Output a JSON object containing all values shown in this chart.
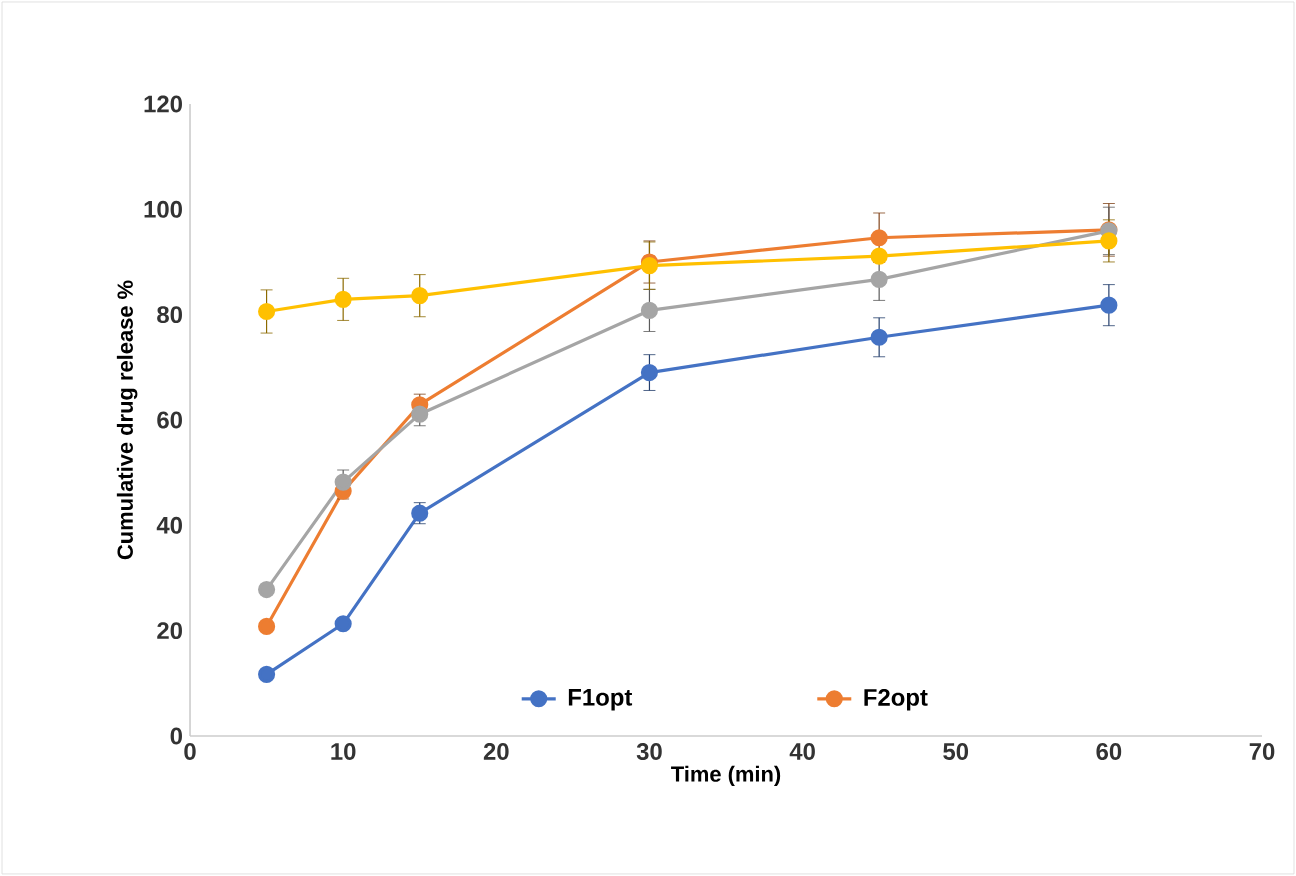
{
  "chart_data": {
    "type": "line",
    "xlabel": "Time (min)",
    "ylabel": "Cumulative drug release %",
    "xlim": [
      0,
      70
    ],
    "xticks": [
      0,
      10,
      20,
      30,
      40,
      50,
      60,
      70
    ],
    "ylim": [
      0,
      120
    ],
    "yticks": [
      0,
      20,
      40,
      60,
      80,
      100,
      120
    ],
    "x": [
      5,
      10,
      15,
      30,
      45,
      60
    ],
    "marker": "circle",
    "legend": "bottom",
    "series": [
      {
        "name": "F1opt",
        "color": "#4472c4",
        "values": [
          11.7,
          21.3,
          42.3,
          69.0,
          75.7,
          81.8
        ],
        "errors": [
          null,
          null,
          2,
          3.4,
          3.7,
          3.9
        ]
      },
      {
        "name": "F2opt",
        "color": "#ed7d31",
        "values": [
          20.8,
          46.5,
          62.9,
          90.0,
          94.6,
          96.1
        ],
        "errors": [
          null,
          1.5,
          2,
          4,
          4.7,
          5
        ]
      },
      {
        "color": "#a5a5a5",
        "values": [
          27.8,
          48.2,
          61.1,
          80.8,
          86.7,
          95.9
        ],
        "errors": [
          1,
          2.3,
          2.2,
          4,
          4,
          4.5
        ]
      },
      {
        "color": "#ffc000",
        "values": [
          80.6,
          82.9,
          83.6,
          89.3,
          91.1,
          94.0
        ],
        "errors": [
          4.1,
          4,
          4,
          4.5,
          null,
          4
        ]
      }
    ]
  }
}
